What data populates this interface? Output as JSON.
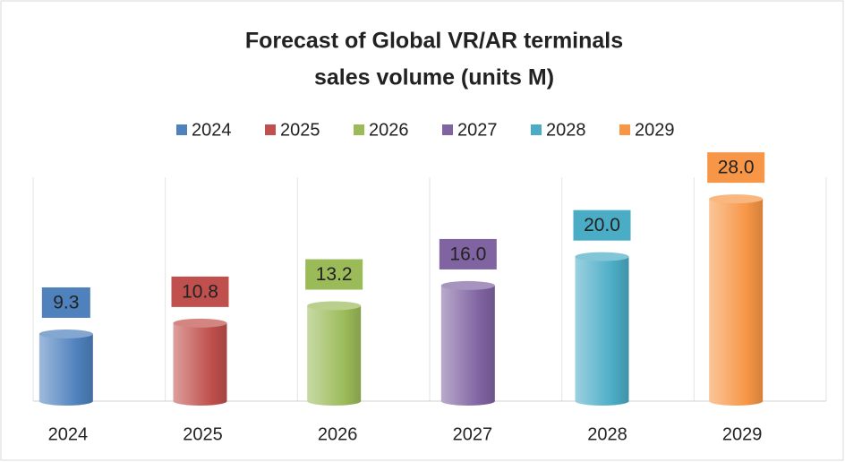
{
  "chart_data": {
    "type": "bar",
    "style": "cylinder",
    "title": [
      "Forecast of Global VR/AR terminals",
      "sales volume (units M)"
    ],
    "categories": [
      "2024",
      "2025",
      "2026",
      "2027",
      "2028",
      "2029"
    ],
    "values": [
      9.3,
      10.8,
      13.2,
      16.0,
      20.0,
      28.0
    ],
    "value_labels": [
      "9.3",
      "10.8",
      "13.2",
      "16.0",
      "20.0",
      "28.0"
    ],
    "colors": [
      "#4f81bd",
      "#c0504d",
      "#9bbb59",
      "#8064a2",
      "#4bacc6",
      "#f79646"
    ],
    "ylim": [
      0,
      30
    ],
    "legend": "top",
    "grid": "vertical"
  }
}
